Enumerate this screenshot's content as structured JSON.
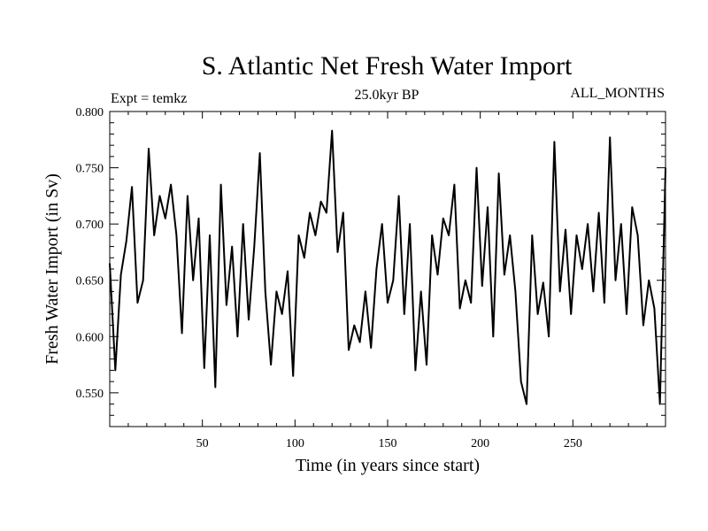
{
  "chart_data": {
    "type": "line",
    "title": "S. Atlantic Net Fresh Water Import",
    "subtitle_left": "Expt = temkz",
    "subtitle_center": "25.0kyr BP",
    "subtitle_right": "ALL_MONTHS",
    "xlabel": "Time (in years since start)",
    "ylabel": "Fresh Water Import (in Sv)",
    "xlim": [
      0,
      300
    ],
    "ylim": [
      0.52,
      0.8
    ],
    "xticks": [
      50,
      100,
      150,
      200,
      250
    ],
    "yticks": [
      0.55,
      0.6,
      0.65,
      0.7,
      0.75,
      0.8
    ],
    "ytick_labels": [
      "0.550",
      "0.600",
      "0.650",
      "0.700",
      "0.750",
      "0.800"
    ],
    "grid": false,
    "series": [
      {
        "name": "fresh water import",
        "color": "#000000",
        "x": [
          0,
          3,
          6,
          9,
          12,
          15,
          18,
          21,
          24,
          27,
          30,
          33,
          36,
          39,
          42,
          45,
          48,
          51,
          54,
          57,
          60,
          63,
          66,
          69,
          72,
          75,
          78,
          81,
          84,
          87,
          90,
          93,
          96,
          99,
          102,
          105,
          108,
          111,
          114,
          117,
          120,
          123,
          126,
          129,
          132,
          135,
          138,
          141,
          144,
          147,
          150,
          153,
          156,
          159,
          162,
          165,
          168,
          171,
          174,
          177,
          180,
          183,
          186,
          189,
          192,
          195,
          198,
          201,
          204,
          207,
          210,
          213,
          216,
          219,
          222,
          225,
          228,
          231,
          234,
          237,
          240,
          243,
          246,
          249,
          252,
          255,
          258,
          261,
          264,
          267,
          270,
          273,
          276,
          279,
          282,
          285,
          288,
          291,
          294,
          297,
          300
        ],
        "values": [
          0.665,
          0.57,
          0.655,
          0.685,
          0.733,
          0.63,
          0.65,
          0.767,
          0.69,
          0.725,
          0.705,
          0.735,
          0.69,
          0.603,
          0.725,
          0.65,
          0.705,
          0.572,
          0.69,
          0.555,
          0.735,
          0.628,
          0.68,
          0.6,
          0.7,
          0.615,
          0.68,
          0.763,
          0.64,
          0.575,
          0.64,
          0.62,
          0.658,
          0.565,
          0.69,
          0.67,
          0.71,
          0.69,
          0.72,
          0.71,
          0.783,
          0.675,
          0.71,
          0.588,
          0.61,
          0.595,
          0.64,
          0.59,
          0.66,
          0.7,
          0.63,
          0.65,
          0.725,
          0.62,
          0.7,
          0.57,
          0.64,
          0.575,
          0.69,
          0.655,
          0.705,
          0.69,
          0.735,
          0.625,
          0.65,
          0.63,
          0.75,
          0.645,
          0.715,
          0.6,
          0.745,
          0.655,
          0.69,
          0.64,
          0.56,
          0.54,
          0.69,
          0.62,
          0.648,
          0.6,
          0.773,
          0.64,
          0.695,
          0.62,
          0.69,
          0.66,
          0.7,
          0.64,
          0.71,
          0.63,
          0.777,
          0.65,
          0.7,
          0.62,
          0.715,
          0.69,
          0.61,
          0.65,
          0.625,
          0.54,
          0.75
        ]
      }
    ]
  }
}
